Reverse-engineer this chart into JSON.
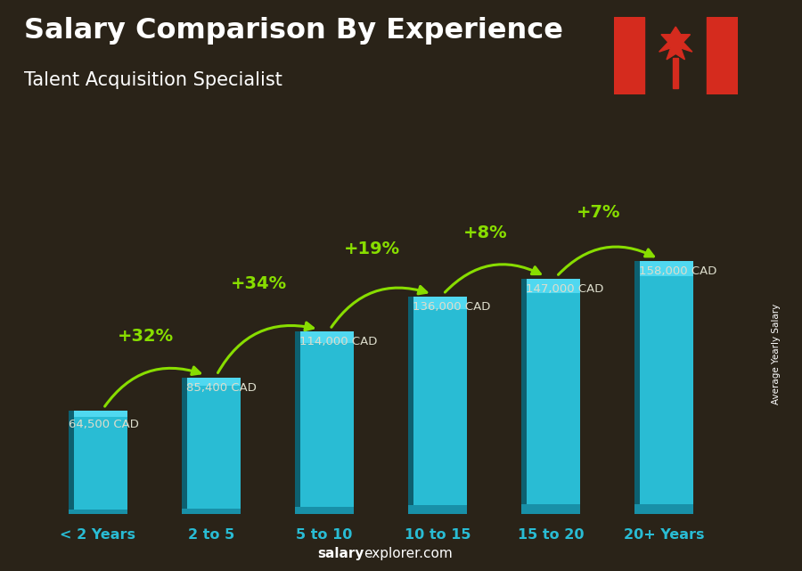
{
  "title_line1": "Salary Comparison By Experience",
  "title_line2": "Talent Acquisition Specialist",
  "categories": [
    "< 2 Years",
    "2 to 5",
    "5 to 10",
    "10 to 15",
    "15 to 20",
    "20+ Years"
  ],
  "values": [
    64500,
    85400,
    114000,
    136000,
    147000,
    158000
  ],
  "salaries_label": [
    "64,500 CAD",
    "85,400 CAD",
    "114,000 CAD",
    "136,000 CAD",
    "147,000 CAD",
    "158,000 CAD"
  ],
  "pct_changes": [
    "+32%",
    "+34%",
    "+19%",
    "+8%",
    "+7%"
  ],
  "bar_color_main": "#29bcd4",
  "bar_color_light": "#50d8f0",
  "bar_color_dark": "#1890a8",
  "bar_color_side": "#0d6070",
  "bg_color": "#2a2318",
  "text_color_white": "#ffffff",
  "text_color_cyan": "#29bcd4",
  "text_color_green": "#88dd00",
  "salary_label_color": "#ddddcc",
  "footer_salary_bold": "salary",
  "footer_rest": "explorer.com",
  "footer_color": "#aaaaaa",
  "ylabel": "Average Yearly Salary",
  "ylim": [
    0,
    200000
  ],
  "bar_width": 0.52
}
